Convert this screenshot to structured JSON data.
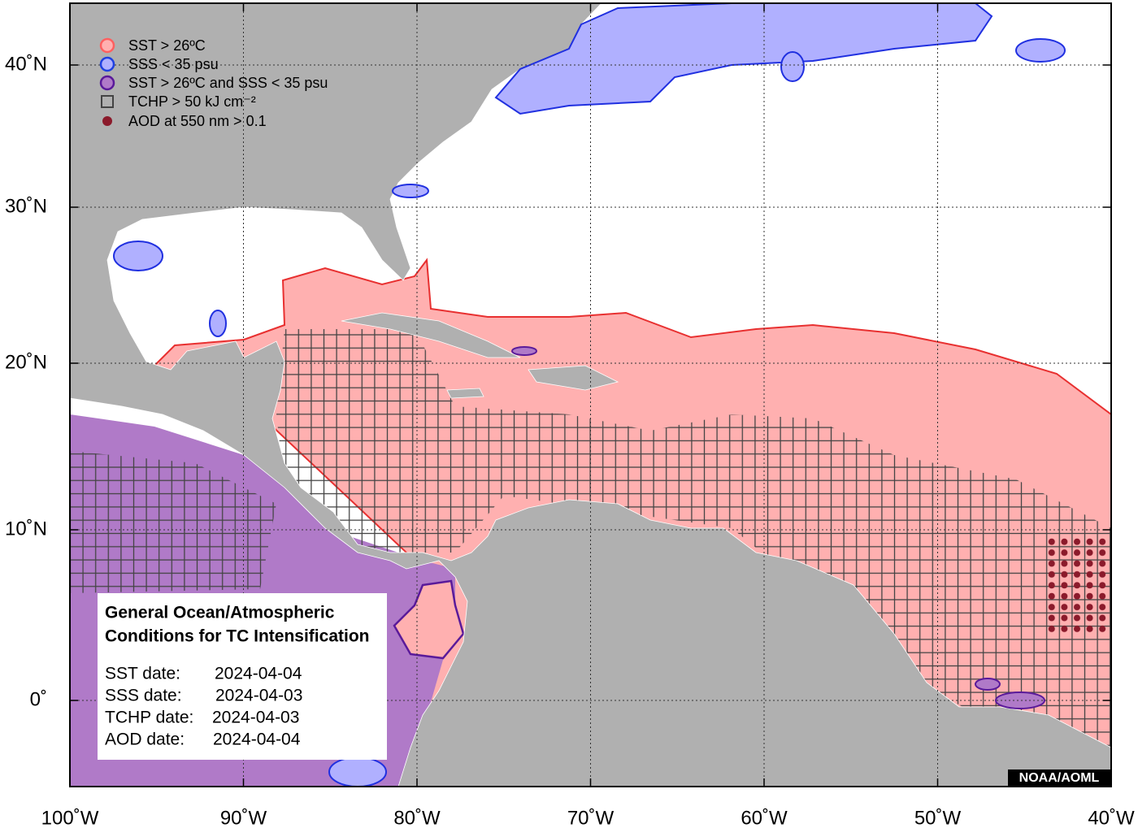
{
  "legend": [
    {
      "label": "SST > 26ºC"
    },
    {
      "label": "SSS < 35 psu"
    },
    {
      "label": "SST > 26ºC and SSS < 35 psu"
    },
    {
      "label": "TCHP > 50 kJ cm⁻²"
    },
    {
      "label": "AOD at 550 nm > 0.1"
    }
  ],
  "info": {
    "title": [
      "General Ocean/Atmospheric",
      "Conditions for TC Intensification"
    ],
    "dates": [
      {
        "label": "SST date:",
        "value": "2024-04-04"
      },
      {
        "label": "SSS date:",
        "value": "2024-04-03"
      },
      {
        "label": "TCHP date:",
        "value": "2024-04-03"
      },
      {
        "label": "AOD date:",
        "value": "2024-04-04"
      }
    ]
  },
  "credit": "NOAA/AOML",
  "x_ticks": [
    "100˚W",
    "90˚W",
    "80˚W",
    "70˚W",
    "60˚W",
    "50˚W",
    "40˚W"
  ],
  "y_ticks": [
    "40˚N",
    "30˚N",
    "20˚N",
    "10˚N",
    "0˚"
  ]
}
